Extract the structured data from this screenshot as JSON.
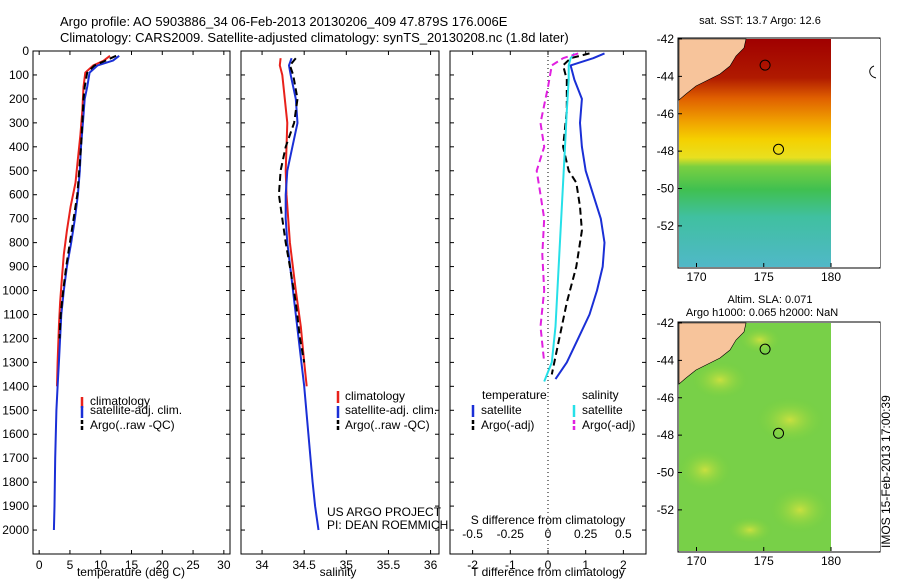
{
  "header": {
    "line1": "Argo profile: AO 5903886_34 06-Feb-2013 20130206_409 47.879S 176.006E",
    "line2": "Climatology: CARS2009. Satellite-adjusted climatology: synTS_20130208.nc (1.8d later)"
  },
  "credit": {
    "line1": "US ARGO PROJECT",
    "line2": "PI: DEAN ROEMMICH"
  },
  "sidebar_text": "IMOS 15-Feb-2013 17:00:39",
  "colors": {
    "climatology": "#e8211b",
    "satellite": "#1a2fd6",
    "argo": "#000000",
    "sat_salinity": "#26e0e8",
    "argo_salinity": "#e020e0",
    "land": "#f7c49b"
  },
  "chart_data": [
    {
      "type": "line",
      "id": "temperature",
      "xlabel": "temperature (deg C)",
      "xlim": [
        -1,
        31
      ],
      "ylim": [
        2100,
        0
      ],
      "xticks": [
        "0",
        "5",
        "10",
        "15",
        "20",
        "25",
        "30"
      ],
      "xtick_values": [
        0,
        5,
        10,
        15,
        20,
        25,
        30
      ],
      "yticks": [
        "0",
        "100",
        "200",
        "300",
        "400",
        "500",
        "600",
        "700",
        "800",
        "900",
        "1000",
        "1100",
        "1200",
        "1300",
        "1400",
        "1500",
        "1600",
        "1700",
        "1800",
        "1900",
        "2000"
      ],
      "ytick_values": [
        0,
        100,
        200,
        300,
        400,
        500,
        600,
        700,
        800,
        900,
        1000,
        1100,
        1200,
        1300,
        1400,
        1500,
        1600,
        1700,
        1800,
        1900,
        2000
      ],
      "legend": [
        "climatology",
        "satellite-adj. clim.",
        "Argo(..raw -QC)"
      ],
      "series": [
        {
          "name": "climatology",
          "style": "solid",
          "color": "#e8211b",
          "x": [
            11.5,
            10.5,
            8.8,
            7.5,
            7.2,
            7.0,
            6.7,
            6.3,
            5.9,
            5.1,
            4.5,
            4.0,
            3.7,
            3.4,
            3.2,
            3.0,
            2.9
          ],
          "y": [
            20,
            40,
            60,
            90,
            150,
            250,
            350,
            450,
            550,
            650,
            750,
            850,
            950,
            1050,
            1150,
            1300,
            1400
          ]
        },
        {
          "name": "satellite-adj. clim.",
          "style": "solid",
          "color": "#1a2fd6",
          "x": [
            13.0,
            12.0,
            9.5,
            8.2,
            7.8,
            7.4,
            7.1,
            6.8,
            6.6,
            6.3,
            5.8,
            5.2,
            4.5,
            4.0,
            3.6,
            3.4,
            3.2,
            3.0,
            2.8,
            2.6,
            2.5,
            2.4
          ],
          "y": [
            20,
            40,
            60,
            90,
            150,
            200,
            300,
            400,
            500,
            600,
            700,
            800,
            900,
            1000,
            1100,
            1200,
            1300,
            1400,
            1500,
            1700,
            1900,
            2000
          ]
        },
        {
          "name": "Argo(..raw -QC)",
          "style": "dash",
          "color": "#000000",
          "x": [
            12.5,
            10.8,
            9.0,
            7.8,
            7.4,
            7.2,
            7.0,
            6.8,
            6.5,
            6.2,
            5.6,
            5.0,
            4.4,
            3.9,
            3.5,
            3.3
          ],
          "y": [
            20,
            40,
            60,
            90,
            150,
            200,
            300,
            400,
            500,
            600,
            700,
            800,
            900,
            1000,
            1100,
            1200
          ]
        }
      ]
    },
    {
      "type": "line",
      "id": "salinity",
      "xlabel": "salinity",
      "xlim": [
        33.75,
        36.1
      ],
      "ylim": [
        2100,
        0
      ],
      "xticks": [
        "34",
        "34.5",
        "35",
        "35.5",
        "36"
      ],
      "xtick_values": [
        34,
        34.5,
        35,
        35.5,
        36
      ],
      "legend": [
        "climatology",
        "satellite-adj. clim.",
        "Argo(..raw -QC)"
      ],
      "series": [
        {
          "name": "climatology",
          "style": "solid",
          "color": "#e8211b",
          "x": [
            34.22,
            34.21,
            34.24,
            34.27,
            34.3,
            34.29,
            34.28,
            34.29,
            34.33,
            34.4,
            34.46,
            34.5,
            34.53
          ],
          "y": [
            30,
            60,
            100,
            200,
            300,
            400,
            500,
            600,
            800,
            1000,
            1150,
            1300,
            1400
          ]
        },
        {
          "name": "satellite-adj. clim.",
          "style": "solid",
          "color": "#1a2fd6",
          "x": [
            34.35,
            34.32,
            34.34,
            34.4,
            34.42,
            34.36,
            34.3,
            34.28,
            34.28,
            34.3,
            34.35,
            34.4,
            34.45,
            34.5,
            34.55,
            34.6,
            34.63,
            34.67
          ],
          "y": [
            30,
            60,
            100,
            200,
            300,
            400,
            500,
            600,
            700,
            800,
            950,
            1100,
            1250,
            1400,
            1600,
            1800,
            1900,
            2000
          ]
        },
        {
          "name": "Argo(..raw -QC)",
          "style": "dash",
          "color": "#000000",
          "x": [
            34.4,
            34.33,
            34.37,
            34.42,
            34.38,
            34.28,
            34.22,
            34.2,
            34.24,
            34.28,
            34.33,
            34.4,
            34.45,
            34.5
          ],
          "y": [
            30,
            60,
            100,
            200,
            300,
            400,
            500,
            600,
            700,
            800,
            900,
            1050,
            1200,
            1300
          ]
        }
      ]
    },
    {
      "type": "line",
      "id": "difference",
      "xlabel": "T difference from climatology",
      "x2label": "S difference from climatology",
      "xlim": [
        -2.6,
        2.6
      ],
      "ylim": [
        2100,
        0
      ],
      "xticks": [
        "-2",
        "-1",
        "0",
        "1",
        "2"
      ],
      "xtick_values": [
        -2,
        -1,
        0,
        1,
        2
      ],
      "x2ticks": [
        "-0.5",
        "-0.25",
        "0",
        "0.25",
        "0.5"
      ],
      "x2tick_values": [
        -0.5,
        -0.25,
        0,
        0.25,
        0.5
      ],
      "legend_headers": [
        "temperature",
        "salinity"
      ],
      "legend": [
        "satellite",
        "Argo(-adj)",
        "satellite",
        "Argo(-adj)"
      ],
      "series": [
        {
          "name": "satellite",
          "quantity": "temperature",
          "style": "solid",
          "color": "#1a2fd6",
          "x": [
            1.5,
            1.2,
            0.6,
            0.7,
            0.9,
            0.85,
            0.9,
            1.0,
            1.2,
            1.4,
            1.5,
            1.45,
            1.3,
            1.1,
            0.8,
            0.5,
            0.2
          ],
          "y": [
            10,
            30,
            60,
            120,
            200,
            300,
            400,
            500,
            600,
            700,
            800,
            900,
            1000,
            1100,
            1200,
            1300,
            1370
          ]
        },
        {
          "name": "Argo(-adj)",
          "quantity": "temperature",
          "style": "dash",
          "color": "#000000",
          "x": [
            1.1,
            0.6,
            0.4,
            0.5,
            0.5,
            0.4,
            0.55,
            0.75,
            0.85,
            0.9,
            0.75,
            0.5,
            0.3,
            0.1
          ],
          "y": [
            10,
            30,
            60,
            120,
            250,
            400,
            500,
            550,
            650,
            750,
            900,
            1050,
            1200,
            1350
          ]
        },
        {
          "name": "satellite",
          "quantity": "salinity",
          "style": "solid",
          "color": "#26e0e8",
          "x": [
            0.7,
            0.6,
            0.55,
            0.55,
            0.5,
            0.45,
            0.4,
            0.35,
            0.3,
            0.25,
            0.2,
            0.1,
            -0.1
          ],
          "y": [
            10,
            30,
            60,
            120,
            250,
            400,
            550,
            700,
            850,
            1000,
            1150,
            1300,
            1380
          ]
        },
        {
          "name": "Argo(-adj)",
          "quantity": "salinity",
          "style": "dash",
          "color": "#e020e0",
          "x": [
            0.8,
            0.4,
            0.1,
            0.0,
            -0.2,
            -0.1,
            -0.3,
            -0.2,
            -0.1,
            -0.15,
            -0.1,
            -0.2,
            -0.1
          ],
          "y": [
            10,
            30,
            60,
            150,
            300,
            400,
            500,
            600,
            700,
            850,
            1000,
            1150,
            1300
          ]
        }
      ]
    },
    {
      "type": "heatmap",
      "id": "sst-map",
      "title": "sat. SST: 13.7 Argo: 12.6",
      "xticks": [
        "170",
        "175",
        "180"
      ],
      "xtick_values": [
        170,
        175,
        180
      ],
      "yticks": [
        "-42",
        "-44",
        "-46",
        "-48",
        "-50",
        "-52"
      ],
      "ytick_values": [
        -42,
        -44,
        -46,
        -48,
        -50,
        -52
      ],
      "xlim": [
        168.7,
        181.2
      ],
      "ylim": [
        -54.2,
        -42
      ],
      "markers": [
        [
          175.1,
          -43.4
        ],
        [
          176.1,
          -47.9
        ]
      ]
    },
    {
      "type": "heatmap",
      "id": "sla-map",
      "title": "Altim. SLA: 0.071",
      "subtitle": "Argo h1000: 0.065 h2000: NaN",
      "xticks": [
        "170",
        "175",
        "180"
      ],
      "xtick_values": [
        170,
        175,
        180
      ],
      "yticks": [
        "-42",
        "-44",
        "-46",
        "-48",
        "-50",
        "-52"
      ],
      "ytick_values": [
        -42,
        -44,
        -46,
        -48,
        -50,
        -52
      ],
      "xlim": [
        168.7,
        181.2
      ],
      "ylim": [
        -54.2,
        -42
      ],
      "markers": [
        [
          175.1,
          -43.4
        ],
        [
          176.1,
          -47.9
        ]
      ]
    }
  ]
}
